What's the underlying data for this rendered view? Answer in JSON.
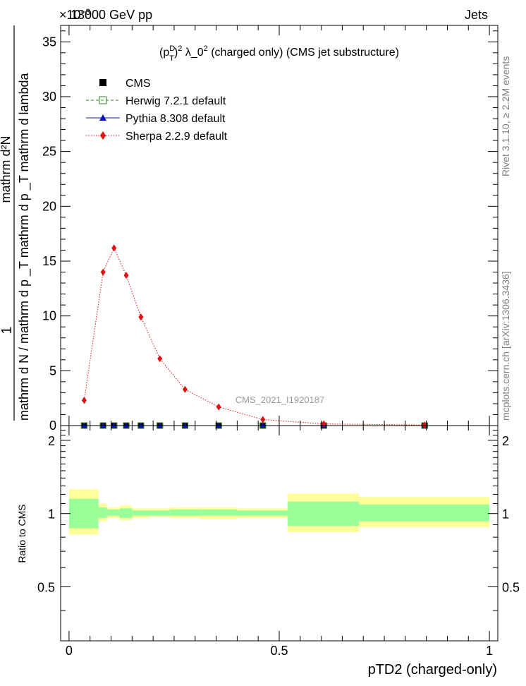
{
  "header": {
    "energy": "13000 GeV pp",
    "exponent": "×10",
    "exponent_power": "−3",
    "category": "Jets"
  },
  "side_text": {
    "rivet": "Rivet 3.1.10, ≥ 2.2M events",
    "site": "mcplots.cern.ch [arXiv:1306.3436]"
  },
  "colors": {
    "cms": "#000000",
    "herwig": "#2a8a1e",
    "pythia": "#1010c0",
    "sherpa": "#e01010",
    "band_outer": "#ffff99",
    "band_inner": "#99ff99"
  },
  "chart_data": [
    {
      "type": "line",
      "title": "(p_T^D)^2 λ_0^2 (charged only) (CMS jet substructure)",
      "analysis_label": "CMS_2021_I1920187",
      "ylabel_num": "1",
      "ylabel_den": "mathrm d N / mathrm d p _T mathrm d p _T mathrm d lambda",
      "ylabel_top": "mathrm d²N",
      "xlim": [
        -0.02,
        1.02
      ],
      "ylim": [
        0,
        36.5
      ],
      "y_scale_note": "×10⁻³",
      "yticks": [
        0,
        5,
        10,
        15,
        20,
        25,
        30,
        35
      ],
      "legend_position": "top-left",
      "series": [
        {
          "name": "CMS",
          "marker": "square",
          "x": [
            0.036,
            0.081,
            0.107,
            0.136,
            0.171,
            0.216,
            0.276,
            0.356,
            0.461,
            0.606,
            0.846
          ],
          "y": [
            0.0,
            0.0,
            0.0,
            0.0,
            0.0,
            0.0,
            0.0,
            0.0,
            0.0,
            0.0,
            0.0
          ]
        },
        {
          "name": "Herwig 7.2.1 default",
          "marker": "open-square",
          "line": "dashed",
          "x": [
            0.036,
            0.081,
            0.107,
            0.136,
            0.171,
            0.216,
            0.276,
            0.356,
            0.461,
            0.606,
            0.846
          ],
          "y": [
            0.0,
            0.0,
            0.0,
            0.0,
            0.0,
            0.0,
            0.0,
            0.0,
            0.0,
            0.0,
            0.0
          ]
        },
        {
          "name": "Pythia 8.308 default",
          "marker": "triangle",
          "line": "solid",
          "x": [
            0.036,
            0.081,
            0.107,
            0.136,
            0.171,
            0.216,
            0.276,
            0.356,
            0.461,
            0.606,
            0.846
          ],
          "y": [
            0.0,
            0.0,
            0.0,
            0.0,
            0.0,
            0.0,
            0.0,
            0.0,
            0.0,
            0.0,
            0.0
          ]
        },
        {
          "name": "Sherpa 2.2.9 default",
          "marker": "diamond",
          "line": "dotted",
          "x": [
            0.036,
            0.081,
            0.107,
            0.136,
            0.171,
            0.216,
            0.276,
            0.356,
            0.461,
            0.606,
            0.846
          ],
          "y": [
            2.3,
            14.0,
            16.2,
            13.7,
            9.9,
            6.1,
            3.3,
            1.7,
            0.55,
            0.15,
            0.05
          ]
        }
      ]
    },
    {
      "type": "area",
      "ylabel": "Ratio to CMS",
      "xlabel": "pTD2 (charged-only)",
      "xlim": [
        -0.02,
        1.02
      ],
      "ylim": [
        0.3,
        2.3
      ],
      "yticks": [
        0.5,
        1,
        2
      ],
      "xticks": [
        0,
        0.5,
        1
      ],
      "bins": [
        {
          "lo": 0.0,
          "hi": 0.07,
          "inner": [
            0.87,
            1.15
          ],
          "outer": [
            0.82,
            1.26
          ]
        },
        {
          "lo": 0.07,
          "hi": 0.09,
          "inner": [
            0.96,
            1.06
          ],
          "outer": [
            0.93,
            1.1
          ]
        },
        {
          "lo": 0.09,
          "hi": 0.12,
          "inner": [
            0.98,
            1.04
          ],
          "outer": [
            0.96,
            1.06
          ]
        },
        {
          "lo": 0.12,
          "hi": 0.15,
          "inner": [
            0.96,
            1.05
          ],
          "outer": [
            0.94,
            1.08
          ]
        },
        {
          "lo": 0.15,
          "hi": 0.19,
          "inner": [
            0.98,
            1.03
          ],
          "outer": [
            0.96,
            1.05
          ]
        },
        {
          "lo": 0.19,
          "hi": 0.24,
          "inner": [
            0.98,
            1.03
          ],
          "outer": [
            0.97,
            1.05
          ]
        },
        {
          "lo": 0.24,
          "hi": 0.31,
          "inner": [
            0.98,
            1.04
          ],
          "outer": [
            0.96,
            1.06
          ]
        },
        {
          "lo": 0.31,
          "hi": 0.4,
          "inner": [
            0.98,
            1.04
          ],
          "outer": [
            0.95,
            1.06
          ]
        },
        {
          "lo": 0.4,
          "hi": 0.52,
          "inner": [
            0.98,
            1.03
          ],
          "outer": [
            0.96,
            1.05
          ]
        },
        {
          "lo": 0.52,
          "hi": 0.69,
          "inner": [
            0.89,
            1.12
          ],
          "outer": [
            0.84,
            1.21
          ]
        },
        {
          "lo": 0.69,
          "hi": 1.0,
          "inner": [
            0.93,
            1.09
          ],
          "outer": [
            0.88,
            1.17
          ]
        }
      ]
    }
  ]
}
